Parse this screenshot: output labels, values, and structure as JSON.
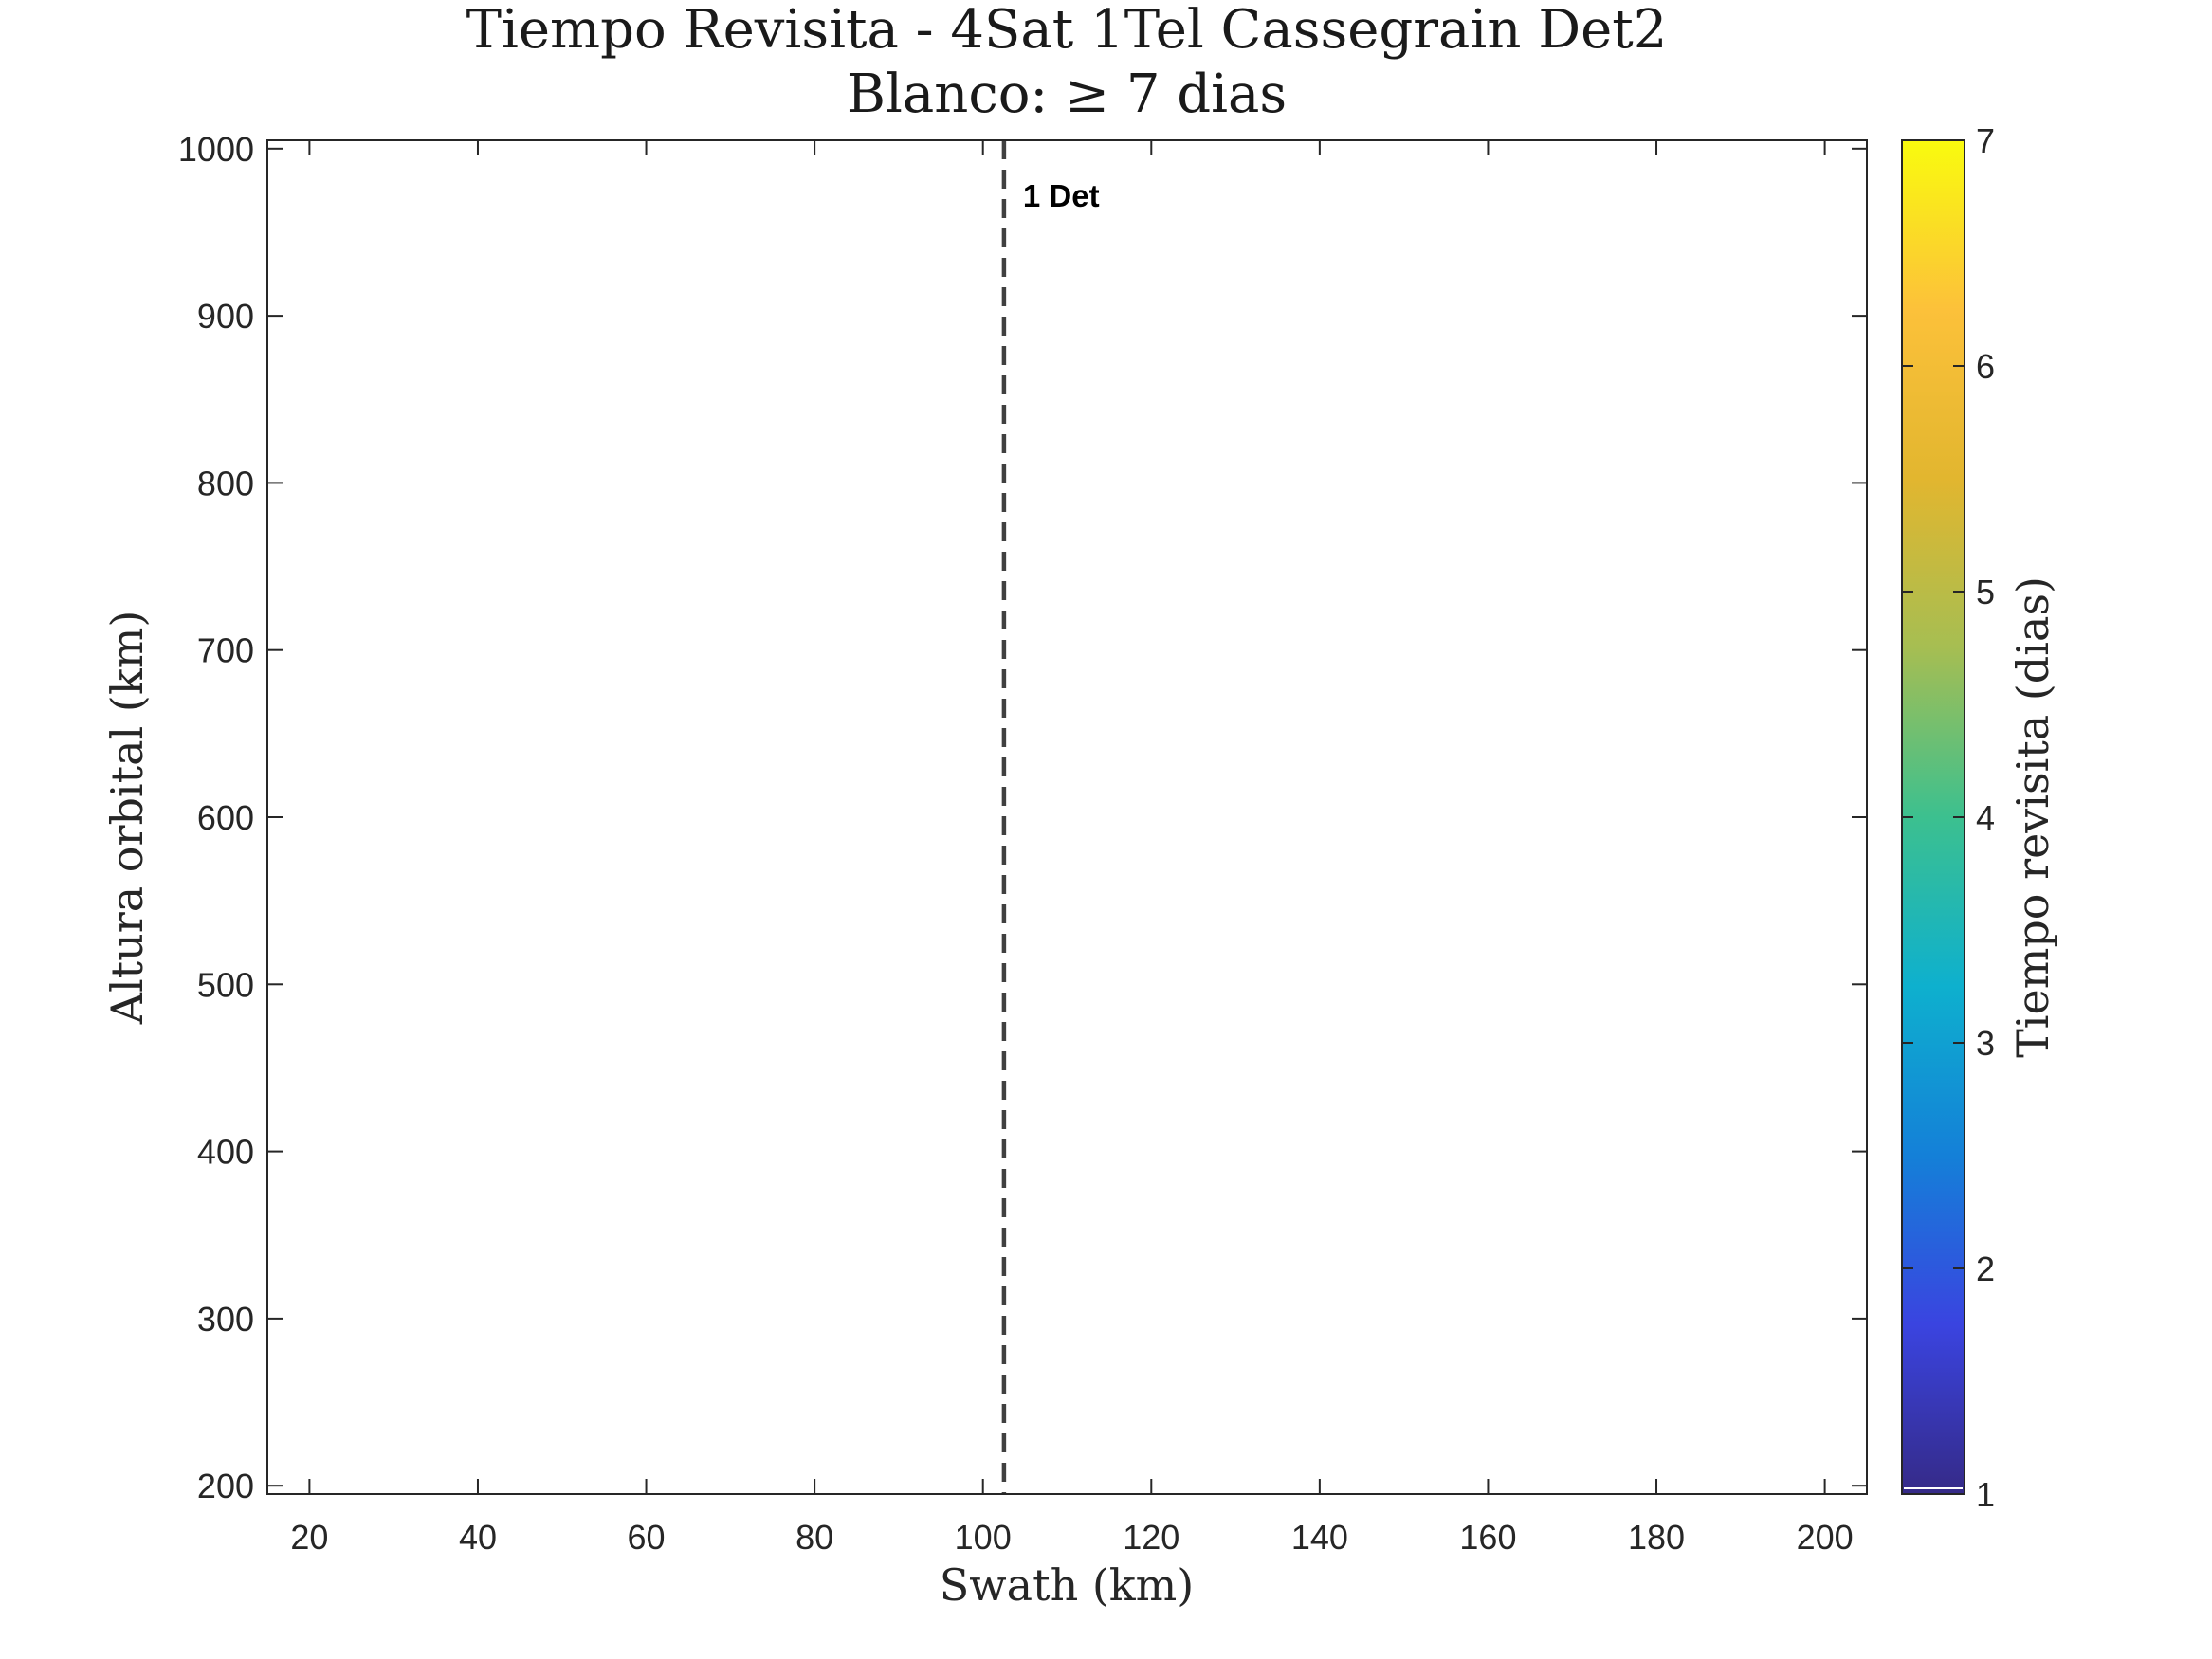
{
  "chart_data": {
    "type": "heatmap",
    "title": "Tiempo Revisita - 4Sat 1Tel Cassegrain Det2",
    "subtitle_prefix": "Blanco:",
    "subtitle_symbol": "≥",
    "subtitle_suffix": "7 dias",
    "xlabel": "Swath (km)",
    "ylabel": "Altura orbital (km)",
    "xlim": [
      15,
      205
    ],
    "ylim": [
      195,
      1005
    ],
    "xticks": [
      20,
      40,
      60,
      80,
      100,
      120,
      140,
      160,
      180,
      200
    ],
    "yticks": [
      200,
      300,
      400,
      500,
      600,
      700,
      800,
      900,
      1000
    ],
    "values": [],
    "grid": false,
    "colorbar": {
      "label": "Tiempo revisita (dias)",
      "colormap": "parula",
      "range": [
        1,
        7
      ],
      "ticks": [
        1,
        2,
        3,
        4,
        5,
        6,
        7
      ],
      "stops": [
        "#352a87",
        "#3a44e0",
        "#1480d8",
        "#0eb0ce",
        "#3cc08f",
        "#a6be52",
        "#e2b62f",
        "#fcc13a",
        "#f9fb0e"
      ]
    },
    "annotations": [
      {
        "type": "vline",
        "x": 102.5,
        "style": "dashed",
        "color": "#404040",
        "label": "1 Det"
      }
    ]
  }
}
